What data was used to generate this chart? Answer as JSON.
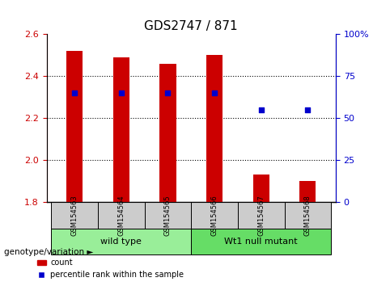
{
  "title": "GDS2747 / 871",
  "categories": [
    "GSM154563",
    "GSM154564",
    "GSM154565",
    "GSM154566",
    "GSM154567",
    "GSM154568"
  ],
  "red_bar_tops": [
    2.52,
    2.49,
    2.46,
    2.5,
    1.93,
    1.9
  ],
  "bar_bottom": 1.8,
  "blue_pct": [
    65,
    65,
    65,
    65,
    55,
    55
  ],
  "ylim_left": [
    1.8,
    2.6
  ],
  "ylim_right": [
    0,
    100
  ],
  "yticks_left": [
    1.8,
    2.0,
    2.2,
    2.4,
    2.6
  ],
  "yticks_right": [
    0,
    25,
    50,
    75,
    100
  ],
  "ytick_labels_right": [
    "0",
    "25",
    "50",
    "75",
    "100%"
  ],
  "bar_color": "#cc0000",
  "blue_color": "#0000cc",
  "grid_color": "#000000",
  "left_tick_color": "#cc0000",
  "right_tick_color": "#0000cc",
  "wild_type_indices": [
    0,
    1,
    2
  ],
  "mutant_indices": [
    3,
    4,
    5
  ],
  "wild_type_label": "wild type",
  "mutant_label": "Wt1 null mutant",
  "group_bg_color_wt": "#99ee99",
  "group_bg_color_mt": "#66dd66",
  "sample_label_bg": "#cccccc",
  "genotype_label": "genotype/variation",
  "legend_count": "count",
  "legend_pct": "percentile rank within the sample",
  "bar_width": 0.35
}
